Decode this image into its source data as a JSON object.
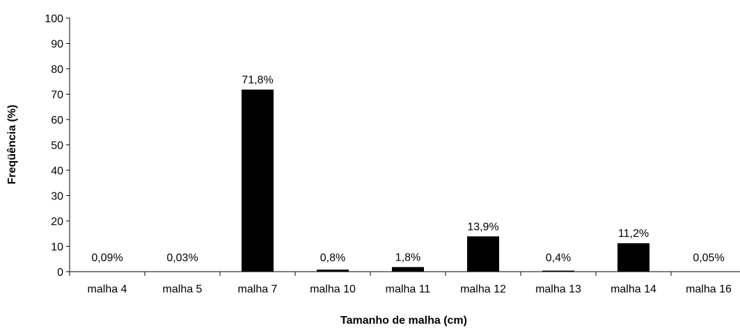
{
  "chart_data": {
    "type": "bar",
    "categories": [
      "malha 4",
      "malha 5",
      "malha 7",
      "malha 10",
      "malha 11",
      "malha 12",
      "malha 13",
      "malha 14",
      "malha 16"
    ],
    "values": [
      0.09,
      0.03,
      71.8,
      0.8,
      1.8,
      13.9,
      0.4,
      11.2,
      0.05
    ],
    "data_labels": [
      "0,09%",
      "0,03%",
      "71,8%",
      "0,8%",
      "1,8%",
      "13,9%",
      "0,4%",
      "11,2%",
      "0,05%"
    ],
    "title": "",
    "xlabel": "Tamanho de malha (cm)",
    "ylabel": "Freqüência (%)",
    "ylim": [
      0,
      100
    ],
    "yticks": [
      0,
      10,
      20,
      30,
      40,
      50,
      60,
      70,
      80,
      90,
      100
    ],
    "grid": false,
    "legend": "none",
    "bar_color": "#000000"
  }
}
